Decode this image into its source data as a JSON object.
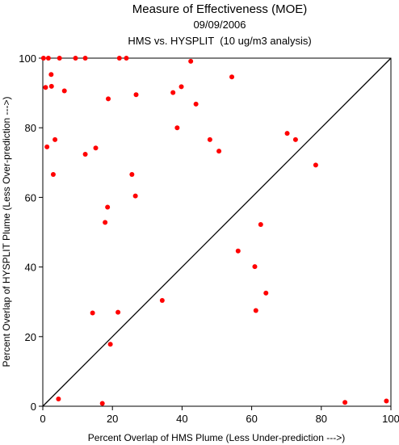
{
  "chart_data": {
    "type": "scatter",
    "title": "Measure of Effectiveness (MOE)",
    "subtitle_date": "09/09/2006",
    "subtitle_analysis": "HMS vs. HYSPLIT  (10 ug/m3 analysis)",
    "xlabel": "Percent Overlap of HMS Plume (Less Under-prediction --->)",
    "ylabel": "Percent Overlap of HYSPLIT Plume (Less Over-prediction --->)",
    "xlim": [
      0,
      100
    ],
    "ylim": [
      0,
      100
    ],
    "x_ticks": [
      0,
      20,
      40,
      60,
      80,
      100
    ],
    "y_ticks": [
      0,
      20,
      40,
      60,
      80,
      100
    ],
    "grid": false,
    "reference_line": {
      "from": [
        0,
        0
      ],
      "to": [
        100,
        100
      ],
      "color": "#000000"
    },
    "point_color": "#ff0000",
    "points": [
      {
        "x": 0.2,
        "y": 100
      },
      {
        "x": 1.6,
        "y": 100
      },
      {
        "x": 4.8,
        "y": 100
      },
      {
        "x": 9.4,
        "y": 100
      },
      {
        "x": 12.2,
        "y": 100
      },
      {
        "x": 22.0,
        "y": 100
      },
      {
        "x": 24.0,
        "y": 100
      },
      {
        "x": 42.5,
        "y": 99.1
      },
      {
        "x": 0.8,
        "y": 91.6
      },
      {
        "x": 2.4,
        "y": 95.3
      },
      {
        "x": 2.5,
        "y": 91.9
      },
      {
        "x": 6.2,
        "y": 90.6
      },
      {
        "x": 54.3,
        "y": 94.6
      },
      {
        "x": 18.8,
        "y": 88.3
      },
      {
        "x": 26.8,
        "y": 89.5
      },
      {
        "x": 37.4,
        "y": 90.1
      },
      {
        "x": 39.8,
        "y": 91.8
      },
      {
        "x": 44.0,
        "y": 86.8
      },
      {
        "x": 38.6,
        "y": 80.0
      },
      {
        "x": 1.2,
        "y": 74.5
      },
      {
        "x": 3.5,
        "y": 76.6
      },
      {
        "x": 12.2,
        "y": 72.4
      },
      {
        "x": 15.2,
        "y": 74.2
      },
      {
        "x": 48.0,
        "y": 76.6
      },
      {
        "x": 50.6,
        "y": 73.3
      },
      {
        "x": 70.2,
        "y": 78.4
      },
      {
        "x": 72.6,
        "y": 76.6
      },
      {
        "x": 78.4,
        "y": 69.3
      },
      {
        "x": 3.0,
        "y": 66.6
      },
      {
        "x": 25.6,
        "y": 66.6
      },
      {
        "x": 26.6,
        "y": 60.4
      },
      {
        "x": 18.6,
        "y": 57.2
      },
      {
        "x": 17.9,
        "y": 52.8
      },
      {
        "x": 62.6,
        "y": 52.2
      },
      {
        "x": 56.1,
        "y": 44.6
      },
      {
        "x": 60.9,
        "y": 40.1
      },
      {
        "x": 64.1,
        "y": 32.5
      },
      {
        "x": 61.2,
        "y": 27.5
      },
      {
        "x": 34.3,
        "y": 30.4
      },
      {
        "x": 14.3,
        "y": 26.8
      },
      {
        "x": 21.6,
        "y": 27.0
      },
      {
        "x": 19.4,
        "y": 17.8
      },
      {
        "x": 4.5,
        "y": 2.1
      },
      {
        "x": 17.1,
        "y": 0.8
      },
      {
        "x": 86.8,
        "y": 1.1
      },
      {
        "x": 98.7,
        "y": 1.5
      }
    ]
  }
}
